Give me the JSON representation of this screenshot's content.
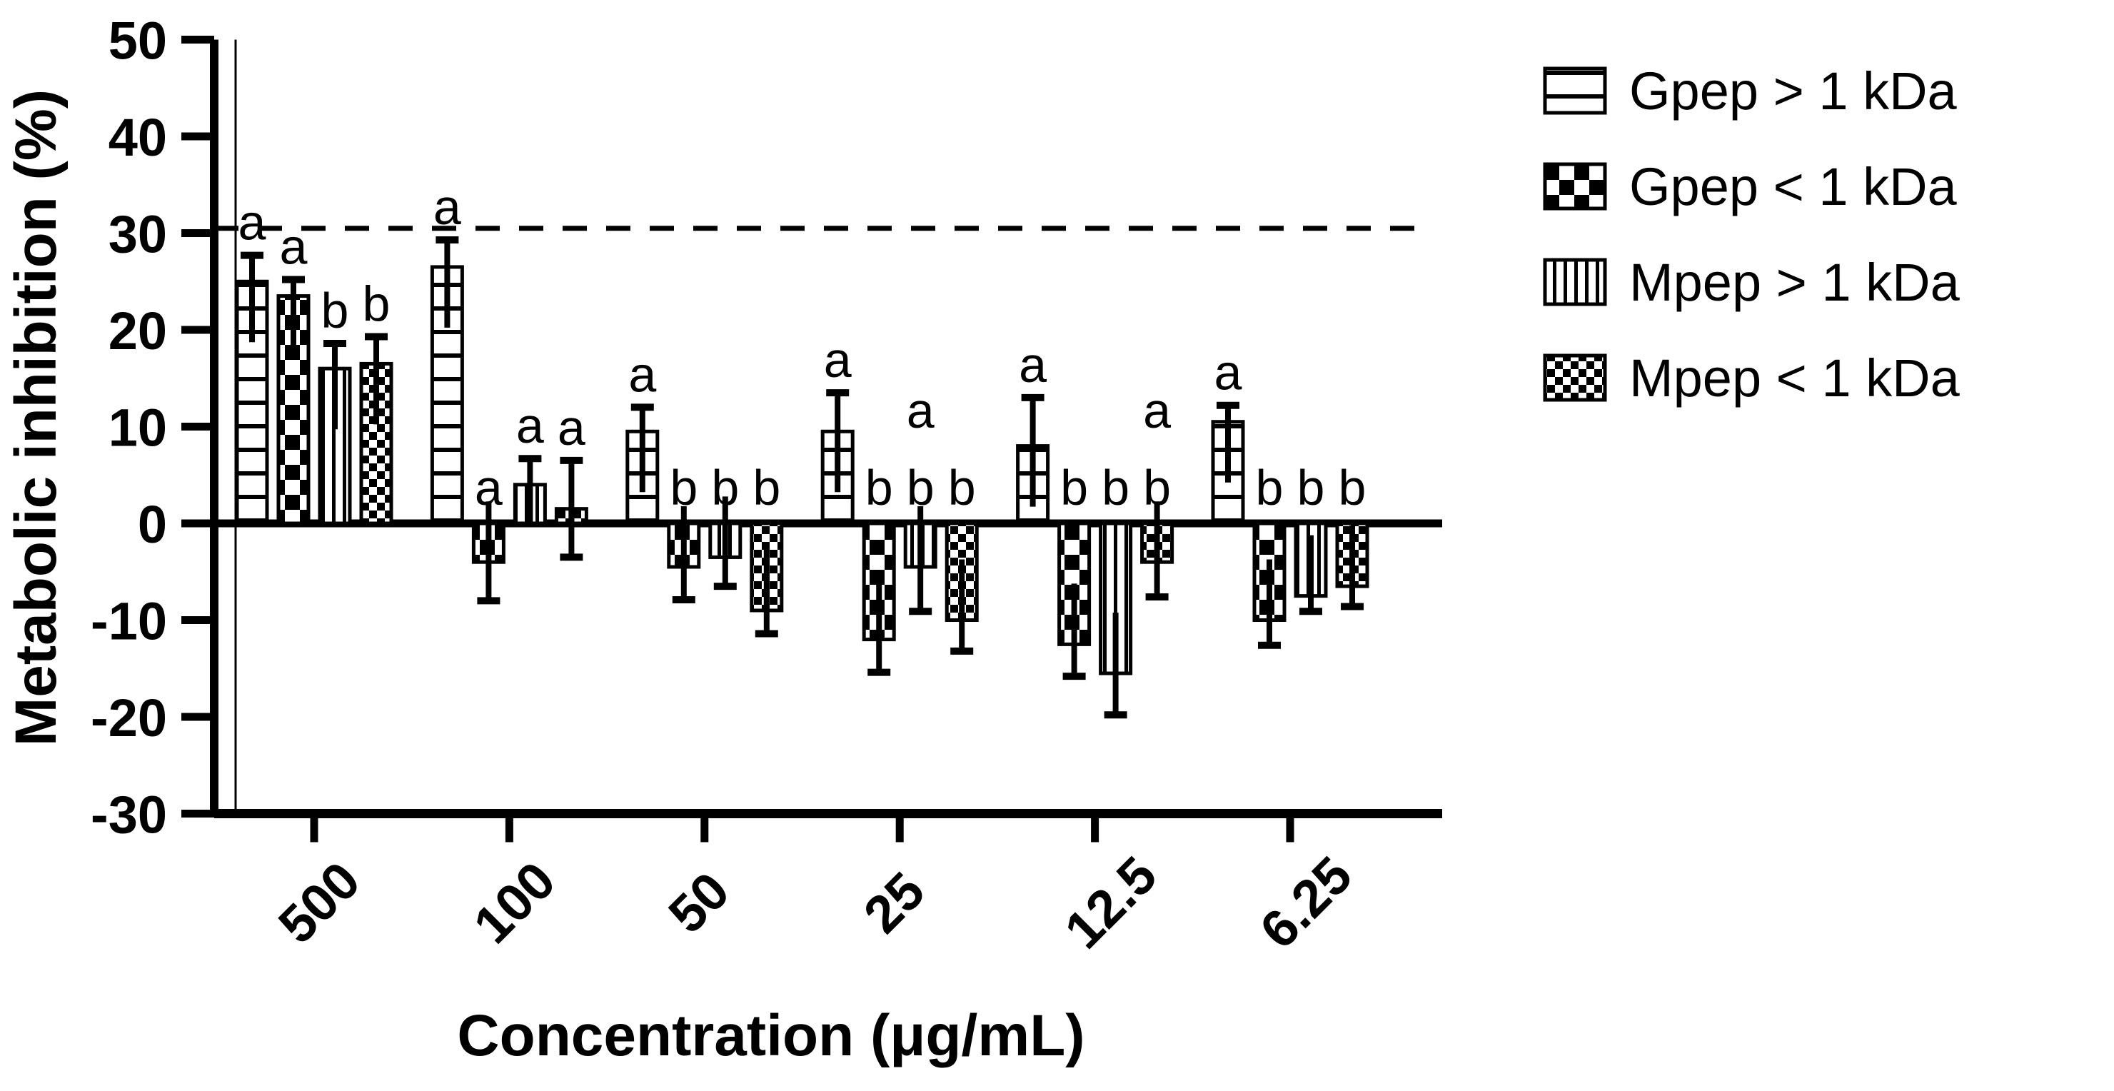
{
  "figure": {
    "background": "#ffffff",
    "ink": "#000000"
  },
  "chart_data": {
    "type": "bar",
    "title": "",
    "xlabel": "Concentration (μg/mL)",
    "ylabel": "Metabolic inhibition (%)",
    "ylim": [
      -30,
      50
    ],
    "yticks": [
      50,
      40,
      30,
      20,
      10,
      0,
      -10,
      -20,
      -30
    ],
    "categories": [
      "500",
      "100",
      "50",
      "25",
      "12.5",
      "6.25"
    ],
    "grid": false,
    "legend_position": "right",
    "reference_line": {
      "y": 30.5,
      "style": "dashed"
    },
    "series": [
      {
        "name": "Gpep > 1 kDa",
        "pattern": "horizontal-stripes",
        "values": [
          25,
          26.5,
          9.5,
          9.5,
          8,
          10.5
        ],
        "errors": [
          2.7,
          2.8,
          2.5,
          4,
          5,
          1.7
        ],
        "letters": [
          "a",
          "a",
          "a",
          "a",
          "a",
          "a"
        ]
      },
      {
        "name": "Gpep < 1 kDa",
        "pattern": "checkerboard-large",
        "values": [
          23.5,
          -4,
          -4.5,
          -12,
          -12.5,
          -10
        ],
        "errors": [
          1.7,
          4,
          3.4,
          3.4,
          3.3,
          2.6
        ],
        "letters": [
          "a",
          "a",
          "b",
          "b",
          "b",
          "b"
        ]
      },
      {
        "name": "Mpep  > 1 kDa",
        "pattern": "vertical-stripes",
        "values": [
          16,
          4,
          -3.5,
          -4.5,
          -15.5,
          -7.5
        ],
        "errors": [
          2.6,
          2.7,
          3,
          4.6,
          4.3,
          1.6
        ],
        "letters": [
          "b",
          "a",
          "b",
          "ab",
          "b",
          "b"
        ]
      },
      {
        "name": "Mpep < 1 kDa",
        "pattern": "checkerboard-fine",
        "values": [
          16.5,
          1.5,
          -9,
          -10,
          -4,
          -6.5
        ],
        "errors": [
          2.8,
          5,
          2.4,
          3.2,
          3.6,
          2.1
        ],
        "letters": [
          "b",
          "a",
          "b",
          "b",
          "ab",
          "b"
        ]
      }
    ]
  }
}
